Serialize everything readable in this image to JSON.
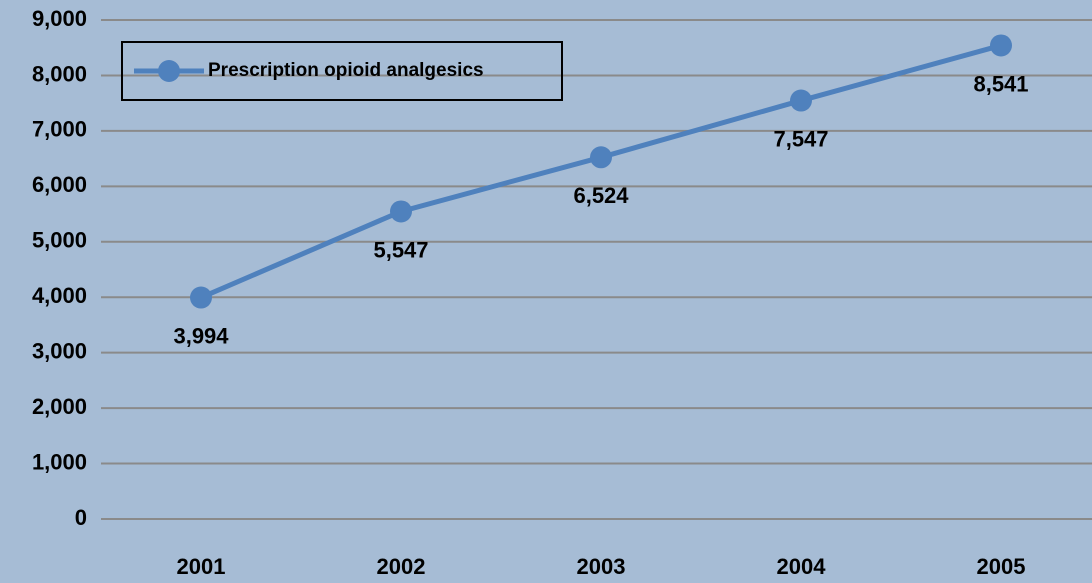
{
  "chart_data": {
    "type": "line",
    "categories": [
      "2001",
      "2002",
      "2003",
      "2004",
      "2005"
    ],
    "series": [
      {
        "name": "Prescription opioid analgesics",
        "color": "#4f81bd",
        "values": [
          3994,
          5547,
          6524,
          7547,
          8541
        ],
        "value_labels": [
          "3,994",
          "5,547",
          "6,524",
          "7,547",
          "8,541"
        ]
      }
    ],
    "ylim": [
      0,
      9000
    ],
    "yticks": [
      0,
      {
        "value": 1000,
        "label": "1,000"
      },
      {
        "value": 2000,
        "label": "2,000"
      },
      {
        "value": 3000,
        "label": "3,000"
      },
      {
        "value": 4000,
        "label": "4,000"
      },
      {
        "value": 5000,
        "label": "5,000"
      },
      {
        "value": 6000,
        "label": "6,000"
      },
      {
        "value": 7000,
        "label": "7,000"
      },
      {
        "value": 8000,
        "label": "8,000"
      },
      {
        "value": 9000,
        "label": "9,000"
      }
    ],
    "grid": true,
    "legend": "top-left"
  }
}
